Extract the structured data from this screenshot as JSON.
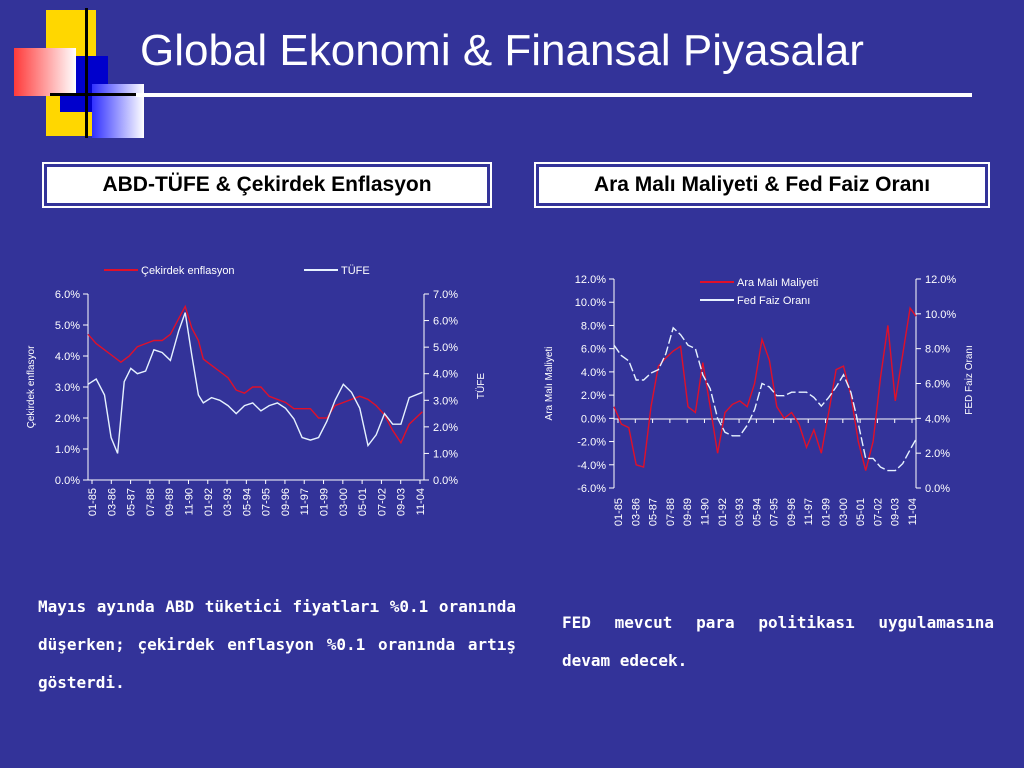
{
  "title": "Global Ekonomi & Finansal Piyasalar",
  "left_panel": {
    "label": "ABD-TÜFE & Çekirdek Enflasyon"
  },
  "right_panel": {
    "label": "Ara Malı Maliyeti & Fed Faiz Oranı"
  },
  "left_text": "Mayıs ayında ABD tüketici fiyatları %0.1 oranında düşerken; çekirdek enflasyon %0.1 oranında artış gösterdi.",
  "right_text": "FED mevcut para politikası uygulamasına devam edecek.",
  "colors": {
    "background": "#333399",
    "series_red": "#e0102a",
    "series_light": "#e6f2ff"
  },
  "chart_data": [
    {
      "type": "line",
      "title": "",
      "x_tick_labels": [
        "01-85",
        "03-86",
        "05-87",
        "07-88",
        "09-89",
        "11-90",
        "01-92",
        "03-93",
        "05-94",
        "07-95",
        "09-96",
        "11-97",
        "01-99",
        "03-00",
        "05-01",
        "07-02",
        "09-03",
        "11-04"
      ],
      "ylabel": "Çekirdek enflasyor",
      "y2label": "TÜFE",
      "ylim": [
        0,
        6
      ],
      "y2lim": [
        0,
        7
      ],
      "yticks": [
        "0.0%",
        "1.0%",
        "2.0%",
        "3.0%",
        "4.0%",
        "5.0%",
        "6.0%"
      ],
      "y2ticks": [
        "0.0%",
        "1.0%",
        "2.0%",
        "3.0%",
        "4.0%",
        "5.0%",
        "6.0%",
        "7.0%"
      ],
      "legend_position": "top",
      "series": [
        {
          "name": "Çekirdek enflasyon",
          "axis": "left",
          "color": "#e0102a",
          "x": [
            1985.0,
            1985.5,
            1986.0,
            1986.5,
            1987.0,
            1987.5,
            1988.0,
            1988.5,
            1989.0,
            1989.5,
            1990.0,
            1990.5,
            1990.9,
            1991.3,
            1991.7,
            1992.0,
            1992.5,
            1993.0,
            1993.5,
            1994.0,
            1994.5,
            1995.0,
            1995.5,
            1996.0,
            1996.5,
            1997.0,
            1997.5,
            1998.0,
            1998.5,
            1999.0,
            1999.5,
            2000.0,
            2000.5,
            2001.0,
            2001.5,
            2002.0,
            2002.5,
            2003.0,
            2003.5,
            2004.0,
            2004.5,
            2005.3
          ],
          "values": [
            4.7,
            4.4,
            4.2,
            4.0,
            3.8,
            4.0,
            4.3,
            4.4,
            4.5,
            4.5,
            4.7,
            5.2,
            5.6,
            4.9,
            4.5,
            3.9,
            3.7,
            3.5,
            3.3,
            2.9,
            2.8,
            3.0,
            3.0,
            2.7,
            2.6,
            2.5,
            2.3,
            2.3,
            2.3,
            2.0,
            2.0,
            2.4,
            2.5,
            2.6,
            2.7,
            2.6,
            2.4,
            2.1,
            1.6,
            1.2,
            1.8,
            2.2
          ]
        },
        {
          "name": "TÜFE",
          "axis": "right",
          "color": "#e6f2ff",
          "x": [
            1985.0,
            1985.5,
            1986.0,
            1986.4,
            1986.8,
            1987.2,
            1987.6,
            1988.0,
            1988.5,
            1989.0,
            1989.5,
            1990.0,
            1990.5,
            1990.9,
            1991.3,
            1991.7,
            1992.0,
            1992.5,
            1993.0,
            1993.5,
            1994.0,
            1994.5,
            1995.0,
            1995.5,
            1996.0,
            1996.5,
            1997.0,
            1997.5,
            1998.0,
            1998.5,
            1999.0,
            1999.5,
            2000.0,
            2000.5,
            2001.0,
            2001.5,
            2002.0,
            2002.5,
            2003.0,
            2003.5,
            2004.0,
            2004.5,
            2005.3
          ],
          "values": [
            3.6,
            3.8,
            3.2,
            1.6,
            1.0,
            3.7,
            4.2,
            4.0,
            4.1,
            4.9,
            4.8,
            4.5,
            5.6,
            6.3,
            4.7,
            3.2,
            2.9,
            3.1,
            3.0,
            2.8,
            2.5,
            2.8,
            2.9,
            2.6,
            2.8,
            2.9,
            2.7,
            2.3,
            1.6,
            1.5,
            1.6,
            2.2,
            3.0,
            3.6,
            3.3,
            2.7,
            1.3,
            1.7,
            2.5,
            2.1,
            2.1,
            3.1,
            3.3
          ]
        }
      ]
    },
    {
      "type": "line",
      "title": "",
      "x_tick_labels": [
        "01-85",
        "03-86",
        "05-87",
        "07-88",
        "09-89",
        "11-90",
        "01-92",
        "03-93",
        "05-94",
        "07-95",
        "09-96",
        "11-97",
        "01-99",
        "03-00",
        "05-01",
        "07-02",
        "09-03",
        "11-04"
      ],
      "ylabel": "Ara Malı Maliyeti",
      "y2label": "FED Faiz Oranı",
      "ylim": [
        -6,
        12
      ],
      "y2lim": [
        0,
        12
      ],
      "yticks": [
        "-6.0%",
        "-4.0%",
        "-2.0%",
        "0.0%",
        "2.0%",
        "4.0%",
        "6.0%",
        "8.0%",
        "10.0%",
        "12.0%"
      ],
      "y2ticks": [
        "0.0%",
        "2.0%",
        "4.0%",
        "6.0%",
        "8.0%",
        "10.0%",
        "12.0%"
      ],
      "legend_position": "top-center",
      "series": [
        {
          "name": "Ara Malı Maliyeti",
          "axis": "left",
          "color": "#e0102a",
          "x": [
            1985.0,
            1985.5,
            1986.0,
            1986.5,
            1987.0,
            1987.5,
            1988.0,
            1988.5,
            1989.0,
            1989.5,
            1990.0,
            1990.5,
            1991.0,
            1991.5,
            1992.0,
            1992.5,
            1993.0,
            1993.5,
            1994.0,
            1994.5,
            1995.0,
            1995.5,
            1996.0,
            1996.5,
            1997.0,
            1997.5,
            1998.0,
            1998.5,
            1999.0,
            1999.5,
            2000.0,
            2000.5,
            2001.0,
            2001.5,
            2002.0,
            2002.5,
            2003.0,
            2003.5,
            2004.0,
            2004.5,
            2005.0,
            2005.4
          ],
          "values": [
            1.0,
            -0.5,
            -0.8,
            -4.0,
            -4.2,
            1.0,
            4.5,
            5.2,
            5.8,
            6.2,
            1.0,
            0.5,
            4.8,
            1.0,
            -3.0,
            0.5,
            1.2,
            1.5,
            1.0,
            3.0,
            6.8,
            5.0,
            1.0,
            0.0,
            0.5,
            -0.5,
            -2.5,
            -1.0,
            -3.0,
            0.5,
            4.2,
            4.5,
            2.0,
            -2.0,
            -4.5,
            -2.0,
            3.5,
            8.0,
            1.5,
            5.5,
            9.5,
            8.8
          ]
        },
        {
          "name": "Fed Faiz Oranı",
          "axis": "right",
          "color": "#e6f2ff",
          "x": [
            1985.0,
            1985.5,
            1986.0,
            1986.5,
            1987.0,
            1987.5,
            1988.0,
            1988.5,
            1989.0,
            1989.5,
            1990.0,
            1990.5,
            1991.0,
            1991.5,
            1992.0,
            1992.5,
            1993.0,
            1993.5,
            1994.0,
            1994.5,
            1995.0,
            1995.5,
            1996.0,
            1996.5,
            1997.0,
            1997.5,
            1998.0,
            1998.5,
            1999.0,
            1999.5,
            2000.0,
            2000.5,
            2001.0,
            2001.5,
            2002.0,
            2002.5,
            2003.0,
            2003.5,
            2004.0,
            2004.5,
            2005.0,
            2005.4
          ],
          "values": [
            8.2,
            7.6,
            7.3,
            6.2,
            6.2,
            6.6,
            6.8,
            7.7,
            9.2,
            8.8,
            8.2,
            8.0,
            6.5,
            5.7,
            4.0,
            3.2,
            3.0,
            3.0,
            3.6,
            4.5,
            6.0,
            5.8,
            5.3,
            5.3,
            5.5,
            5.5,
            5.5,
            5.2,
            4.7,
            5.2,
            5.8,
            6.5,
            5.5,
            3.7,
            1.7,
            1.7,
            1.2,
            1.0,
            1.0,
            1.4,
            2.2,
            2.8
          ]
        }
      ]
    }
  ]
}
